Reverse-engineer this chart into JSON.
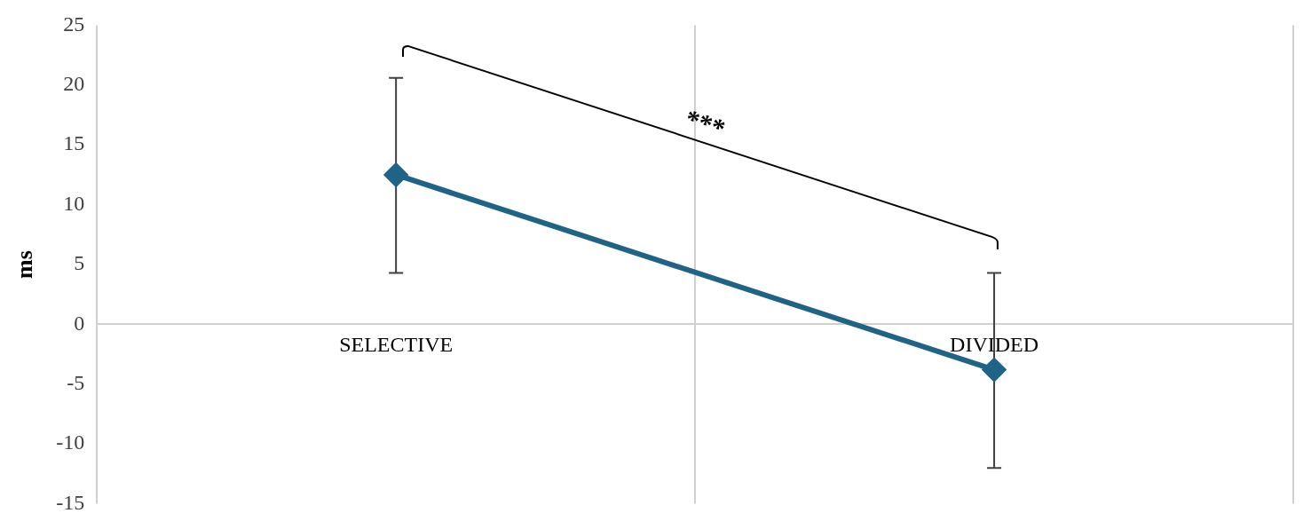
{
  "chart_data": {
    "type": "line",
    "ylabel": "ms",
    "categories": [
      "SELECTIVE",
      "DIVIDED"
    ],
    "series": [
      {
        "color": "#1f6386",
        "values": [
          12.5,
          -3.8
        ],
        "errors": [
          [
            4.3,
            20.6
          ],
          [
            -12.0,
            4.3
          ]
        ]
      }
    ],
    "ylim": [
      -15,
      25
    ],
    "yticks": [
      -15,
      -10,
      -5,
      0,
      5,
      10,
      15,
      20,
      25
    ],
    "grid": "x",
    "legend": false,
    "marker": "diamond",
    "line_style": "solid",
    "annotations": [
      "***"
    ]
  }
}
